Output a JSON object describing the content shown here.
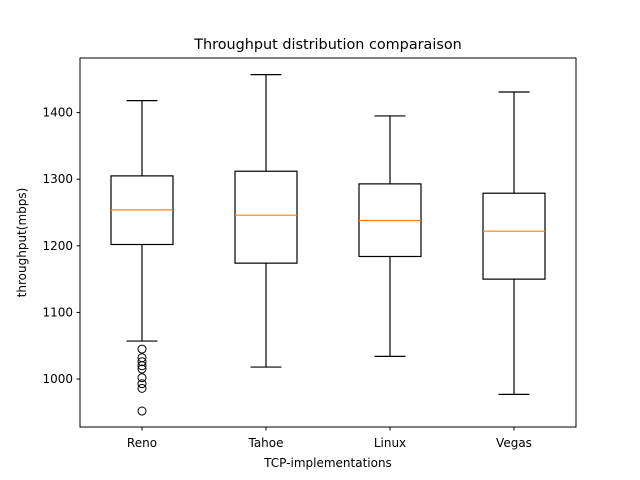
{
  "chart_data": {
    "type": "box",
    "title": "Throughput distribution comparaison",
    "xlabel": "TCP-implementations",
    "ylabel": "throughput(mbps)",
    "ylim": [
      928,
      1482
    ],
    "yticks": [
      1000,
      1100,
      1200,
      1300,
      1400
    ],
    "grid": false,
    "categories": [
      "Reno",
      "Tahoe",
      "Linux",
      "Vegas"
    ],
    "boxes": [
      {
        "label": "Reno",
        "whisker_low": 1057,
        "q1": 1202,
        "median": 1254,
        "q3": 1305,
        "whisker_high": 1418,
        "outliers": [
          1045,
          1032,
          1026,
          1020,
          1015,
          1002,
          993,
          986,
          952
        ]
      },
      {
        "label": "Tahoe",
        "whisker_low": 1018,
        "q1": 1174,
        "median": 1246,
        "q3": 1312,
        "whisker_high": 1457,
        "outliers": []
      },
      {
        "label": "Linux",
        "whisker_low": 1034,
        "q1": 1184,
        "median": 1238,
        "q3": 1293,
        "whisker_high": 1395,
        "outliers": []
      },
      {
        "label": "Vegas",
        "whisker_low": 977,
        "q1": 1150,
        "median": 1222,
        "q3": 1279,
        "whisker_high": 1431,
        "outliers": []
      }
    ],
    "colors": {
      "box": "#000000",
      "median": "#ff7f0e",
      "outlier": "#000000"
    }
  }
}
